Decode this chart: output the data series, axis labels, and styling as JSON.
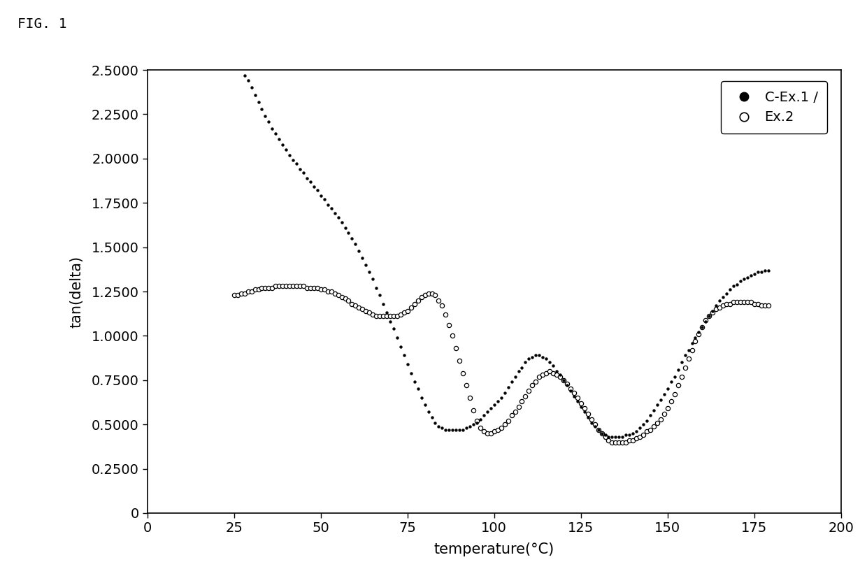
{
  "title": "FIG. 1",
  "xlabel": "temperature(°C)",
  "ylabel": "tan(delta)",
  "xlim": [
    0,
    200
  ],
  "ylim": [
    0,
    2.5
  ],
  "yticks": [
    0,
    0.25,
    0.5,
    0.75,
    1.0,
    1.25,
    1.5,
    1.75,
    2.0,
    2.25,
    2.5
  ],
  "ytick_labels": [
    "0",
    "0.2500",
    "0.5000",
    "0.7500",
    "1.0000",
    "1.2500",
    "1.5000",
    "1.7500",
    "2.0000",
    "2.2500",
    "2.5000"
  ],
  "xticks": [
    0,
    25,
    50,
    75,
    100,
    125,
    150,
    175,
    200
  ],
  "xtick_labels": [
    "0",
    "25",
    "50",
    "75",
    "100",
    "125",
    "150",
    "175",
    "200"
  ],
  "legend1_label": "C-Ex.1 /",
  "legend2_label": "Ex.2",
  "background_color": "#ffffff",
  "series1_color": "#000000",
  "series2_color": "#000000",
  "series1_x": [
    28,
    29,
    30,
    31,
    32,
    33,
    34,
    35,
    36,
    37,
    38,
    39,
    40,
    41,
    42,
    43,
    44,
    45,
    46,
    47,
    48,
    49,
    50,
    51,
    52,
    53,
    54,
    55,
    56,
    57,
    58,
    59,
    60,
    61,
    62,
    63,
    64,
    65,
    66,
    67,
    68,
    69,
    70,
    71,
    72,
    73,
    74,
    75,
    76,
    77,
    78,
    79,
    80,
    81,
    82,
    83,
    84,
    85,
    86,
    87,
    88,
    89,
    90,
    91,
    92,
    93,
    94,
    95,
    96,
    97,
    98,
    99,
    100,
    101,
    102,
    103,
    104,
    105,
    106,
    107,
    108,
    109,
    110,
    111,
    112,
    113,
    114,
    115,
    116,
    117,
    118,
    119,
    120,
    121,
    122,
    123,
    124,
    125,
    126,
    127,
    128,
    129,
    130,
    131,
    132,
    133,
    134,
    135,
    136,
    137,
    138,
    139,
    140,
    141,
    142,
    143,
    144,
    145,
    146,
    147,
    148,
    149,
    150,
    151,
    152,
    153,
    154,
    155,
    156,
    157,
    158,
    159,
    160,
    161,
    162,
    163,
    164,
    165,
    166,
    167,
    168,
    169,
    170,
    171,
    172,
    173,
    174,
    175,
    176,
    177,
    178,
    179
  ],
  "series1_y": [
    2.47,
    2.44,
    2.4,
    2.36,
    2.32,
    2.28,
    2.24,
    2.21,
    2.17,
    2.14,
    2.11,
    2.08,
    2.05,
    2.02,
    1.99,
    1.97,
    1.94,
    1.92,
    1.89,
    1.87,
    1.84,
    1.82,
    1.79,
    1.77,
    1.74,
    1.72,
    1.69,
    1.67,
    1.64,
    1.61,
    1.58,
    1.55,
    1.52,
    1.48,
    1.44,
    1.4,
    1.36,
    1.32,
    1.27,
    1.23,
    1.18,
    1.13,
    1.08,
    1.04,
    0.99,
    0.94,
    0.89,
    0.84,
    0.79,
    0.74,
    0.7,
    0.65,
    0.61,
    0.57,
    0.54,
    0.51,
    0.49,
    0.48,
    0.47,
    0.47,
    0.47,
    0.47,
    0.47,
    0.47,
    0.48,
    0.49,
    0.5,
    0.51,
    0.53,
    0.55,
    0.57,
    0.59,
    0.61,
    0.63,
    0.65,
    0.68,
    0.71,
    0.74,
    0.77,
    0.8,
    0.82,
    0.85,
    0.87,
    0.88,
    0.89,
    0.89,
    0.88,
    0.87,
    0.85,
    0.83,
    0.8,
    0.78,
    0.75,
    0.72,
    0.69,
    0.66,
    0.63,
    0.6,
    0.57,
    0.54,
    0.51,
    0.49,
    0.47,
    0.45,
    0.44,
    0.43,
    0.43,
    0.43,
    0.43,
    0.43,
    0.44,
    0.44,
    0.45,
    0.46,
    0.48,
    0.5,
    0.52,
    0.55,
    0.58,
    0.61,
    0.64,
    0.67,
    0.7,
    0.74,
    0.77,
    0.81,
    0.85,
    0.89,
    0.92,
    0.96,
    0.99,
    1.02,
    1.05,
    1.08,
    1.11,
    1.14,
    1.17,
    1.2,
    1.22,
    1.24,
    1.26,
    1.28,
    1.29,
    1.31,
    1.32,
    1.33,
    1.34,
    1.35,
    1.36,
    1.36,
    1.37,
    1.37
  ],
  "series2_x": [
    25,
    26,
    27,
    28,
    29,
    30,
    31,
    32,
    33,
    34,
    35,
    36,
    37,
    38,
    39,
    40,
    41,
    42,
    43,
    44,
    45,
    46,
    47,
    48,
    49,
    50,
    51,
    52,
    53,
    54,
    55,
    56,
    57,
    58,
    59,
    60,
    61,
    62,
    63,
    64,
    65,
    66,
    67,
    68,
    69,
    70,
    71,
    72,
    73,
    74,
    75,
    76,
    77,
    78,
    79,
    80,
    81,
    82,
    83,
    84,
    85,
    86,
    87,
    88,
    89,
    90,
    91,
    92,
    93,
    94,
    95,
    96,
    97,
    98,
    99,
    100,
    101,
    102,
    103,
    104,
    105,
    106,
    107,
    108,
    109,
    110,
    111,
    112,
    113,
    114,
    115,
    116,
    117,
    118,
    119,
    120,
    121,
    122,
    123,
    124,
    125,
    126,
    127,
    128,
    129,
    130,
    131,
    132,
    133,
    134,
    135,
    136,
    137,
    138,
    139,
    140,
    141,
    142,
    143,
    144,
    145,
    146,
    147,
    148,
    149,
    150,
    151,
    152,
    153,
    154,
    155,
    156,
    157,
    158,
    159,
    160,
    161,
    162,
    163,
    164,
    165,
    166,
    167,
    168,
    169,
    170,
    171,
    172,
    173,
    174,
    175,
    176,
    177,
    178,
    179
  ],
  "series2_y": [
    1.23,
    1.23,
    1.24,
    1.24,
    1.25,
    1.25,
    1.26,
    1.26,
    1.27,
    1.27,
    1.27,
    1.27,
    1.28,
    1.28,
    1.28,
    1.28,
    1.28,
    1.28,
    1.28,
    1.28,
    1.28,
    1.27,
    1.27,
    1.27,
    1.27,
    1.26,
    1.26,
    1.25,
    1.25,
    1.24,
    1.23,
    1.22,
    1.21,
    1.2,
    1.18,
    1.17,
    1.16,
    1.15,
    1.14,
    1.13,
    1.12,
    1.11,
    1.11,
    1.11,
    1.11,
    1.11,
    1.11,
    1.11,
    1.12,
    1.13,
    1.14,
    1.16,
    1.18,
    1.2,
    1.22,
    1.23,
    1.24,
    1.24,
    1.23,
    1.2,
    1.17,
    1.12,
    1.06,
    1.0,
    0.93,
    0.86,
    0.79,
    0.72,
    0.65,
    0.58,
    0.52,
    0.48,
    0.46,
    0.45,
    0.45,
    0.46,
    0.47,
    0.48,
    0.5,
    0.52,
    0.55,
    0.57,
    0.6,
    0.63,
    0.66,
    0.69,
    0.72,
    0.74,
    0.77,
    0.78,
    0.79,
    0.8,
    0.79,
    0.78,
    0.77,
    0.75,
    0.73,
    0.7,
    0.68,
    0.65,
    0.62,
    0.59,
    0.56,
    0.53,
    0.5,
    0.47,
    0.45,
    0.43,
    0.41,
    0.4,
    0.4,
    0.4,
    0.4,
    0.4,
    0.41,
    0.41,
    0.42,
    0.43,
    0.44,
    0.46,
    0.47,
    0.49,
    0.51,
    0.53,
    0.56,
    0.59,
    0.63,
    0.67,
    0.72,
    0.77,
    0.82,
    0.87,
    0.92,
    0.97,
    1.01,
    1.05,
    1.09,
    1.11,
    1.13,
    1.15,
    1.16,
    1.17,
    1.18,
    1.18,
    1.19,
    1.19,
    1.19,
    1.19,
    1.19,
    1.19,
    1.18,
    1.18,
    1.17,
    1.17,
    1.17
  ]
}
